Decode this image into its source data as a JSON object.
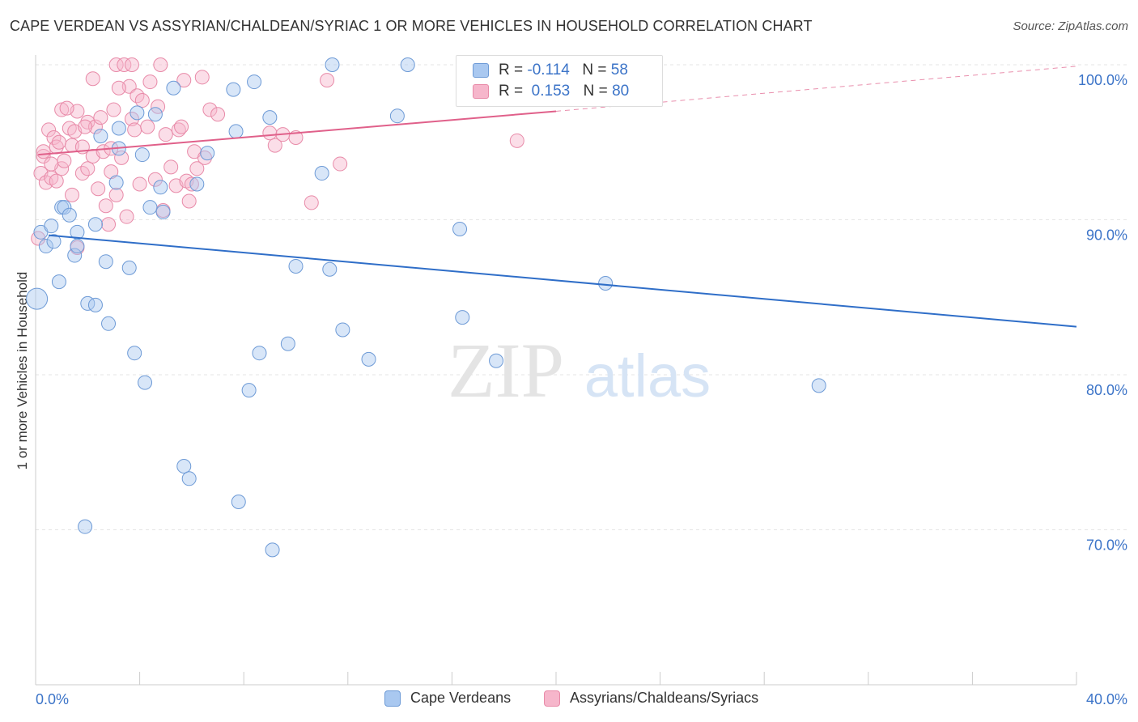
{
  "title": "CAPE VERDEAN VS ASSYRIAN/CHALDEAN/SYRIAC 1 OR MORE VEHICLES IN HOUSEHOLD CORRELATION CHART",
  "source": "Source: ZipAtlas.com",
  "watermark": {
    "zip": "ZIP",
    "atlas": "atlas"
  },
  "legend": {
    "rows": [
      {
        "r_label": "R =",
        "r_value": "-0.114",
        "n_label": "N =",
        "n_value": "58"
      },
      {
        "r_label": "R =",
        "r_value": "0.153",
        "n_label": "N =",
        "n_value": "80"
      }
    ]
  },
  "bottom_legend": [
    "Cape Verdeans",
    "Assyrians/Chaldeans/Syriacs"
  ],
  "colors": {
    "blue_fill": "#a9c8f0",
    "blue_stroke": "#6d9ad6",
    "blue_line": "#2f6ec8",
    "pink_fill": "#f6b6cb",
    "pink_stroke": "#e88aa8",
    "pink_line": "#e0608a",
    "axis_label": "#3c74c8",
    "grid": "#e6e6e6"
  },
  "chart_data": {
    "type": "scatter",
    "title": "CAPE VERDEAN VS ASSYRIAN/CHALDEAN/SYRIAC 1 OR MORE VEHICLES IN HOUSEHOLD CORRELATION CHART",
    "xlabel": "",
    "ylabel": "1 or more Vehicles in Household",
    "xlim": [
      0,
      40
    ],
    "ylim": [
      60,
      100
    ],
    "x_tick_labels": [
      "0.0%",
      "40.0%"
    ],
    "y_ticks": [
      70,
      80,
      90,
      100
    ],
    "y_tick_labels": [
      "70.0%",
      "80.0%",
      "90.0%",
      "100.0%"
    ],
    "grid": true,
    "series": [
      {
        "name": "Cape Verdeans",
        "r": -0.114,
        "n": 58,
        "trend": {
          "x0": 0.5,
          "y0": 89.0,
          "x1": 40.0,
          "y1": 83.1
        },
        "points": [
          [
            0.05,
            84.9
          ],
          [
            0.2,
            89.2
          ],
          [
            0.4,
            88.3
          ],
          [
            0.6,
            89.6
          ],
          [
            0.7,
            88.6
          ],
          [
            0.9,
            86.0
          ],
          [
            1.0,
            90.8
          ],
          [
            1.1,
            90.8
          ],
          [
            1.3,
            90.3
          ],
          [
            1.5,
            87.7
          ],
          [
            1.6,
            89.2
          ],
          [
            1.6,
            88.3
          ],
          [
            1.9,
            70.2
          ],
          [
            2.0,
            84.6
          ],
          [
            2.3,
            84.5
          ],
          [
            2.3,
            89.7
          ],
          [
            2.5,
            95.4
          ],
          [
            2.7,
            87.3
          ],
          [
            2.8,
            83.3
          ],
          [
            3.1,
            92.4
          ],
          [
            3.2,
            95.9
          ],
          [
            3.2,
            94.6
          ],
          [
            3.6,
            86.9
          ],
          [
            3.8,
            81.4
          ],
          [
            3.9,
            96.9
          ],
          [
            4.1,
            94.2
          ],
          [
            4.2,
            79.5
          ],
          [
            4.4,
            90.8
          ],
          [
            4.6,
            96.8
          ],
          [
            4.8,
            92.1
          ],
          [
            4.9,
            90.5
          ],
          [
            5.3,
            98.5
          ],
          [
            5.7,
            74.1
          ],
          [
            5.9,
            73.3
          ],
          [
            6.2,
            92.3
          ],
          [
            6.6,
            94.3
          ],
          [
            7.6,
            98.4
          ],
          [
            7.7,
            95.7
          ],
          [
            7.8,
            71.8
          ],
          [
            8.2,
            79.0
          ],
          [
            8.4,
            98.9
          ],
          [
            8.6,
            81.4
          ],
          [
            9.1,
            68.7
          ],
          [
            9.0,
            96.6
          ],
          [
            9.7,
            82.0
          ],
          [
            10.0,
            87.0
          ],
          [
            11.0,
            93.0
          ],
          [
            11.3,
            86.8
          ],
          [
            11.4,
            100.0
          ],
          [
            11.8,
            82.9
          ],
          [
            12.8,
            81.0
          ],
          [
            13.9,
            96.7
          ],
          [
            14.3,
            100.0
          ],
          [
            16.3,
            89.4
          ],
          [
            16.4,
            83.7
          ],
          [
            17.7,
            80.9
          ],
          [
            21.9,
            85.9
          ],
          [
            30.1,
            79.3
          ]
        ]
      },
      {
        "name": "Assyrians/Chaldeans/Syriacs",
        "r": 0.153,
        "n": 80,
        "trend": {
          "x0": 0.1,
          "y0": 94.2,
          "x1": 20.0,
          "y1": 97.0,
          "dash_x1": 40.0,
          "dash_y1": 99.9
        },
        "points": [
          [
            0.1,
            88.8
          ],
          [
            0.2,
            93.0
          ],
          [
            0.3,
            94.1
          ],
          [
            0.4,
            92.4
          ],
          [
            0.5,
            95.8
          ],
          [
            0.6,
            92.7
          ],
          [
            0.7,
            95.3
          ],
          [
            0.8,
            94.7
          ],
          [
            0.8,
            92.5
          ],
          [
            0.9,
            95.0
          ],
          [
            1.0,
            93.3
          ],
          [
            1.0,
            97.1
          ],
          [
            1.1,
            93.8
          ],
          [
            1.3,
            95.9
          ],
          [
            1.4,
            94.8
          ],
          [
            1.5,
            95.7
          ],
          [
            1.6,
            88.2
          ],
          [
            1.6,
            97.0
          ],
          [
            1.8,
            93.0
          ],
          [
            1.8,
            94.7
          ],
          [
            2.0,
            96.3
          ],
          [
            2.0,
            93.3
          ],
          [
            2.2,
            94.1
          ],
          [
            2.2,
            99.1
          ],
          [
            2.3,
            96.0
          ],
          [
            2.5,
            96.6
          ],
          [
            2.6,
            94.4
          ],
          [
            2.7,
            90.9
          ],
          [
            2.8,
            89.7
          ],
          [
            2.9,
            93.1
          ],
          [
            3.0,
            97.1
          ],
          [
            3.1,
            100.0
          ],
          [
            3.1,
            91.6
          ],
          [
            3.3,
            94.0
          ],
          [
            3.4,
            100.0
          ],
          [
            3.5,
            90.2
          ],
          [
            3.6,
            98.6
          ],
          [
            3.7,
            100.0
          ],
          [
            3.7,
            96.5
          ],
          [
            3.8,
            95.8
          ],
          [
            3.9,
            98.0
          ],
          [
            4.0,
            92.3
          ],
          [
            4.3,
            96.0
          ],
          [
            4.4,
            98.9
          ],
          [
            4.6,
            92.6
          ],
          [
            4.7,
            97.3
          ],
          [
            4.8,
            100.0
          ],
          [
            4.9,
            90.6
          ],
          [
            5.2,
            93.4
          ],
          [
            5.4,
            92.2
          ],
          [
            5.5,
            95.8
          ],
          [
            5.6,
            96.0
          ],
          [
            5.7,
            99.0
          ],
          [
            5.8,
            92.5
          ],
          [
            5.9,
            91.2
          ],
          [
            6.0,
            92.3
          ],
          [
            6.1,
            94.4
          ],
          [
            6.2,
            93.3
          ],
          [
            6.4,
            99.2
          ],
          [
            6.7,
            97.1
          ],
          [
            7.0,
            96.8
          ],
          [
            9.0,
            95.6
          ],
          [
            9.2,
            94.8
          ],
          [
            9.5,
            95.5
          ],
          [
            10.0,
            95.3
          ],
          [
            10.6,
            91.1
          ],
          [
            11.2,
            99.0
          ],
          [
            11.7,
            93.6
          ],
          [
            18.5,
            95.1
          ],
          [
            1.2,
            97.2
          ],
          [
            2.4,
            92.0
          ],
          [
            1.9,
            96.0
          ],
          [
            3.2,
            98.5
          ],
          [
            5.0,
            95.5
          ],
          [
            0.6,
            93.6
          ],
          [
            1.4,
            91.6
          ],
          [
            2.9,
            94.6
          ],
          [
            4.1,
            97.7
          ],
          [
            6.5,
            94.0
          ],
          [
            0.3,
            94.4
          ]
        ]
      }
    ]
  }
}
